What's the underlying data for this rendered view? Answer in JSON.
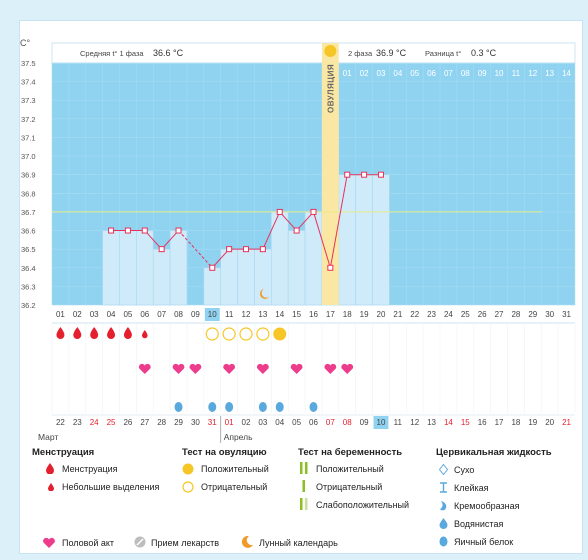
{
  "chart_data": {
    "type": "line",
    "unit_label": "C°",
    "y_ticks": [
      "37.5",
      "37.4",
      "37.3",
      "37.2",
      "37.1",
      "37.0",
      "36.9",
      "36.8",
      "36.7",
      "36.6",
      "36.5",
      "36.4",
      "36.3",
      "36.2"
    ],
    "ylim": [
      36.2,
      37.5
    ],
    "cover_line": 36.7,
    "phase1_label": "Средняя t° 1 фаза",
    "phase1_value": "36.6 °C",
    "phase2_label": "2 фаза",
    "phase2_value": "36.9 °C",
    "diff_label": "Разница t°",
    "diff_value": "0.3 °C",
    "ovulation_label": "ОВУЛЯЦИЯ",
    "ovulation_day": 17,
    "cycle_days": [
      "01",
      "02",
      "03",
      "04",
      "05",
      "06",
      "07",
      "08",
      "09",
      "10",
      "11",
      "12",
      "13",
      "14",
      "15",
      "16",
      "17",
      "18",
      "19",
      "20",
      "21",
      "22",
      "23",
      "24",
      "25",
      "26",
      "27",
      "28",
      "29",
      "30",
      "31"
    ],
    "current_day": "10",
    "phase2_days": [
      "01",
      "02",
      "03",
      "04",
      "05",
      "06",
      "07",
      "08",
      "09",
      "10",
      "11",
      "12",
      "13",
      "14"
    ],
    "temperatures": [
      null,
      null,
      null,
      36.6,
      36.6,
      36.6,
      36.5,
      36.6,
      null,
      36.4,
      36.5,
      36.5,
      36.5,
      36.7,
      36.6,
      36.7,
      36.4,
      36.9,
      36.9,
      36.9,
      null,
      null,
      null,
      null,
      null,
      null,
      null,
      null,
      null,
      null,
      null
    ],
    "calendar_dates": [
      "22",
      "23",
      "24",
      "25",
      "26",
      "27",
      "28",
      "29",
      "30",
      "31",
      "01",
      "02",
      "03",
      "04",
      "05",
      "06",
      "07",
      "08",
      "09",
      "10",
      "11",
      "12",
      "13",
      "14",
      "15",
      "16",
      "17",
      "18",
      "19",
      "20",
      "21"
    ],
    "month_labels": [
      "Март",
      "Апрель"
    ]
  },
  "markers": {
    "menstruation_days": [
      1,
      2,
      3,
      4,
      5
    ],
    "spotting_days": [
      6
    ],
    "ovulation_negative_days": [
      10,
      11,
      12,
      13
    ],
    "ovulation_positive_days": [
      14
    ],
    "intercourse_days": [
      6,
      8,
      9,
      11,
      13,
      15,
      17,
      18
    ],
    "fluid_egg_white_days": [
      8,
      10,
      11,
      13,
      14,
      16
    ],
    "lunar_day": 13
  },
  "legend": {
    "menstruation_title": "Менструация",
    "menstruation": "Менструация",
    "spotting": "Небольшие выделения",
    "ovulation_test_title": "Тест на овуляцию",
    "ovulation_positive": "Положительный",
    "ovulation_negative": "Отрицательный",
    "pregnancy_test_title": "Тест на беременность",
    "pregnancy_positive": "Положительный",
    "pregnancy_negative": "Отрицательный",
    "pregnancy_weak": "Слабоположительный",
    "fluid_title": "Цервикальная жидкость",
    "fluid_dry": "Сухо",
    "fluid_sticky": "Клейкая",
    "fluid_creamy": "Кремообразная",
    "fluid_watery": "Водянистая",
    "fluid_egg_white": "Яичный белок",
    "intercourse": "Половой акт",
    "medication": "Прием лекарств",
    "lunar": "Лунный календарь"
  },
  "colors": {
    "plot_bg": "#8fd3f1",
    "bar_fill": "#cfeaf9",
    "line": "#e8315b",
    "ovulation_band": "#fbe7a4",
    "red": "#e4202e",
    "pink": "#ee3c8c",
    "yellow": "#f6c626",
    "green": "#8cbf26",
    "blue": "#59a8de"
  }
}
